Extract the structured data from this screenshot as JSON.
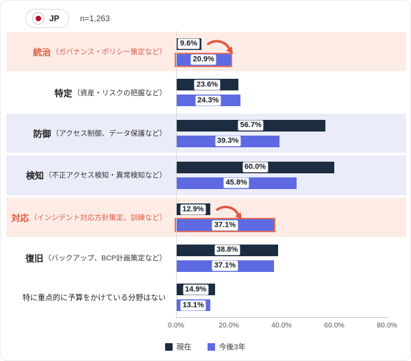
{
  "header": {
    "country_label": "JP",
    "sample_size": "n=1,263"
  },
  "colors": {
    "series_current": "#1c2d42",
    "series_future": "#5d6ae2",
    "band_pink": "#fdece6",
    "band_lavender": "#ebecfa",
    "highlight_text": "#e05a42",
    "highlight_border": "#e2705a",
    "arrow": "#e25540",
    "flag_red": "#bc002d"
  },
  "chart_data": {
    "type": "bar",
    "orientation": "horizontal",
    "title": "",
    "x_axis": {
      "ticks": [
        "0.0%",
        "20.0%",
        "40.0%",
        "60.0%",
        "80.0%"
      ],
      "max": 80,
      "grid": false
    },
    "legend": [
      {
        "label": "現在"
      },
      {
        "label": "今後3年"
      }
    ],
    "legend_position": "bottom-center",
    "categories": [
      {
        "main": "統治",
        "sub": "（ガバナンス・ポリシー策定など）",
        "emphasis": true,
        "band": "pink",
        "main_bold": true,
        "current": 9.6,
        "future": 20.9,
        "current_label": "9.6%",
        "future_label": "20.9%",
        "future_highlighted": true,
        "arrow": true
      },
      {
        "main": "特定",
        "sub": "（資産・リスクの把握など）",
        "emphasis": false,
        "band": "none",
        "main_bold": true,
        "current": 23.6,
        "future": 24.3,
        "current_label": "23.6%",
        "future_label": "24.3%",
        "future_highlighted": false,
        "arrow": false
      },
      {
        "main": "防御",
        "sub": "（アクセス制御、データ保護など）",
        "emphasis": false,
        "band": "lavender",
        "main_bold": true,
        "current": 56.7,
        "future": 39.3,
        "current_label": "56.7%",
        "future_label": "39.3%",
        "future_highlighted": false,
        "arrow": false
      },
      {
        "main": "検知",
        "sub": "（不正アクセス検知・異常検知など）",
        "emphasis": false,
        "band": "lavender",
        "main_bold": true,
        "current": 60.0,
        "future": 45.8,
        "current_label": "60.0%",
        "future_label": "45.8%",
        "future_highlighted": false,
        "arrow": false
      },
      {
        "main": "対応",
        "sub": "（インシデント対応方針策定、訓練など）",
        "emphasis": true,
        "band": "pink",
        "main_bold": true,
        "current": 12.9,
        "future": 37.1,
        "current_label": "12.9%",
        "future_label": "37.1%",
        "future_highlighted": true,
        "arrow": true
      },
      {
        "main": "復旧",
        "sub": "（バックアップ、BCP計画策定など）",
        "emphasis": false,
        "band": "none",
        "main_bold": true,
        "current": 38.8,
        "future": 37.1,
        "current_label": "38.8%",
        "future_label": "37.1%",
        "future_highlighted": false,
        "arrow": false
      },
      {
        "main": "特に重点的に予算をかけている分野はない",
        "sub": "",
        "emphasis": false,
        "band": "none",
        "main_bold": false,
        "current": 14.9,
        "future": 13.1,
        "current_label": "14.9%",
        "future_label": "13.1%",
        "future_highlighted": false,
        "arrow": false
      }
    ]
  }
}
